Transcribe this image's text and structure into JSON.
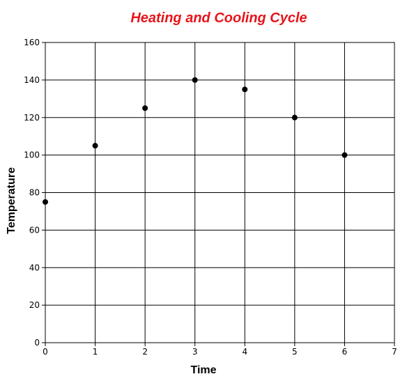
{
  "chart_data": {
    "type": "scatter",
    "title": "Heating and Cooling Cycle",
    "xlabel": "Time",
    "ylabel": "Temperature",
    "xlim": [
      0,
      7
    ],
    "ylim": [
      0,
      160
    ],
    "x_ticks": [
      "0",
      "1",
      "2",
      "3",
      "4",
      "5",
      "6",
      "7"
    ],
    "y_ticks": [
      "0",
      "20",
      "40",
      "60",
      "80",
      "100",
      "120",
      "140",
      "160"
    ],
    "grid": true,
    "legend": "none",
    "colors": {
      "title": "#e8141b",
      "points": "#000000",
      "grid": "#000000"
    },
    "series": [
      {
        "x": [
          0,
          1,
          2,
          3,
          4,
          5,
          6
        ],
        "y": [
          75,
          105,
          125,
          140,
          135,
          120,
          100
        ]
      }
    ]
  }
}
